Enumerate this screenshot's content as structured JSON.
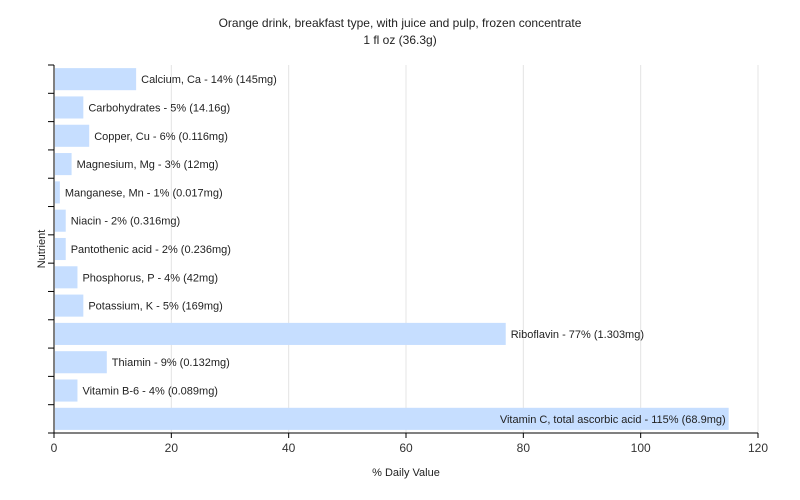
{
  "chart_data": {
    "type": "bar",
    "orientation": "horizontal",
    "title": "Orange drink, breakfast type, with juice and pulp, frozen concentrate",
    "subtitle": "1 fl oz (36.3g)",
    "xlabel": "% Daily Value",
    "ylabel": "Nutrient",
    "xlim": [
      0,
      120
    ],
    "xticks": [
      0,
      20,
      40,
      60,
      80,
      100,
      120
    ],
    "grid": true,
    "bar_color": "#c6deff",
    "categories": [
      "Calcium, Ca",
      "Carbohydrates",
      "Copper, Cu",
      "Magnesium, Mg",
      "Manganese, Mn",
      "Niacin",
      "Pantothenic acid",
      "Phosphorus, P",
      "Potassium, K",
      "Riboflavin",
      "Thiamin",
      "Vitamin B-6",
      "Vitamin C, total ascorbic acid"
    ],
    "values": [
      14,
      5,
      6,
      3,
      1,
      2,
      2,
      4,
      5,
      77,
      9,
      4,
      115
    ],
    "labels": [
      "Calcium, Ca - 14% (145mg)",
      "Carbohydrates - 5% (14.16g)",
      "Copper, Cu - 6% (0.116mg)",
      "Magnesium, Mg - 3% (12mg)",
      "Manganese, Mn - 1% (0.017mg)",
      "Niacin - 2% (0.316mg)",
      "Pantothenic acid - 2% (0.236mg)",
      "Phosphorus, P - 4% (42mg)",
      "Potassium, K - 5% (169mg)",
      "Riboflavin - 77% (1.303mg)",
      "Thiamin - 9% (0.132mg)",
      "Vitamin B-6 - 4% (0.089mg)",
      "Vitamin C, total ascorbic acid - 115% (68.9mg)"
    ]
  }
}
